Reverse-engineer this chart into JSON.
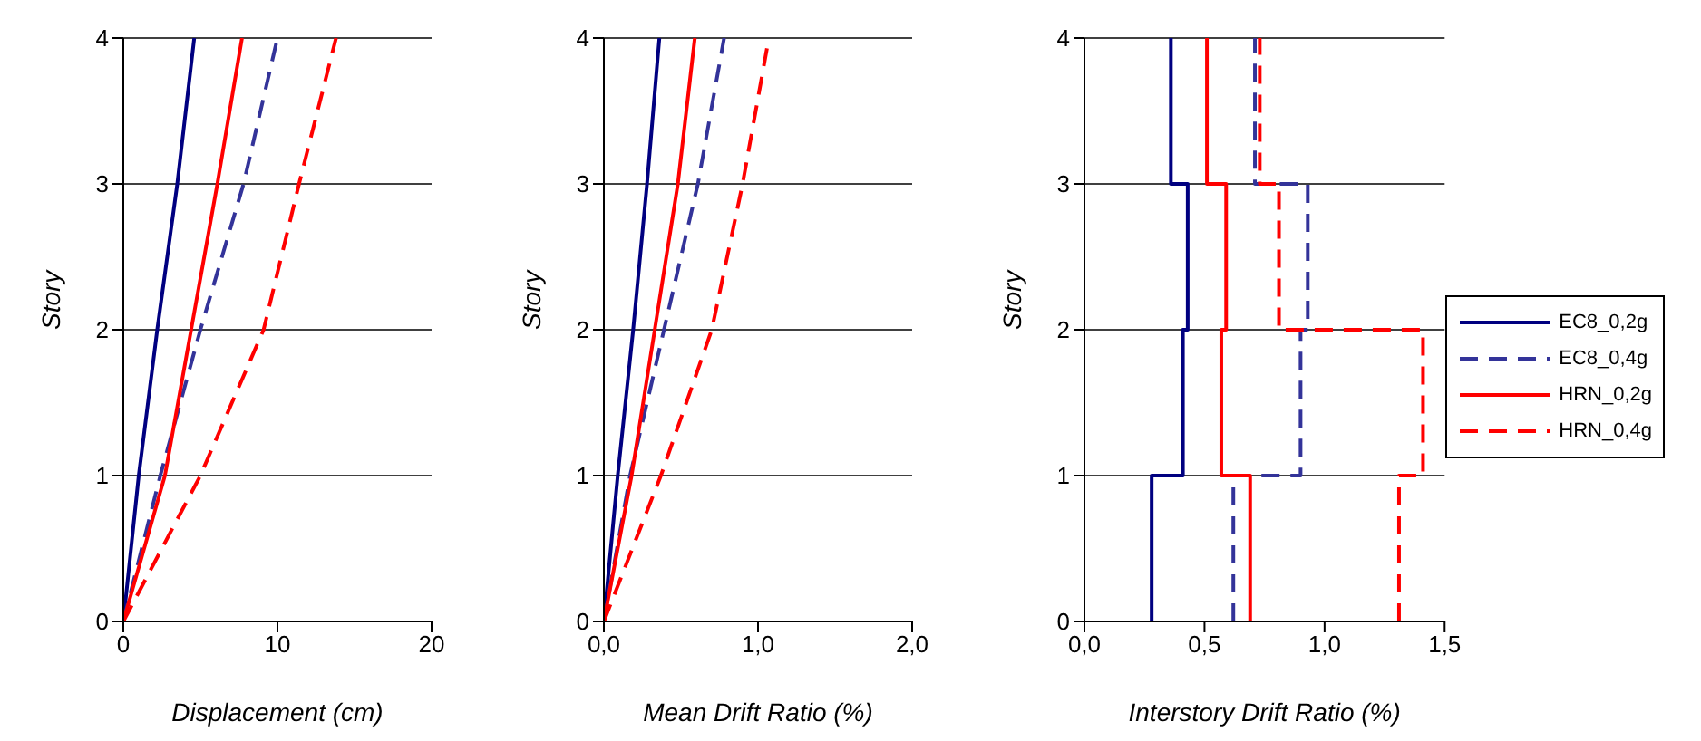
{
  "chart_data": [
    {
      "type": "line",
      "xlabel": "Displacement (cm)",
      "ylabel": "Story",
      "xlim": [
        0,
        20
      ],
      "xticks": [
        0,
        10,
        20
      ],
      "ylim": [
        0,
        4
      ],
      "yticks": [
        0,
        1,
        2,
        3,
        4
      ],
      "grid": "y",
      "marker": "none",
      "legend": false,
      "series": [
        {
          "color": "#000080",
          "line_style": "solid",
          "x": [
            0,
            1.0,
            2.2,
            3.5,
            4.6
          ],
          "values": [
            0,
            1,
            2,
            3,
            4
          ]
        },
        {
          "color": "#333399",
          "line_style": "dashed",
          "x": [
            0,
            2.4,
            5.0,
            7.8,
            10.0
          ],
          "values": [
            0,
            1,
            2,
            3,
            4
          ]
        },
        {
          "color": "#ff0000",
          "line_style": "solid",
          "x": [
            0,
            2.7,
            4.4,
            6.1,
            7.7
          ],
          "values": [
            0,
            1,
            2,
            3,
            4
          ]
        },
        {
          "color": "#ff0000",
          "line_style": "dashed",
          "x": [
            0,
            5.0,
            9.1,
            11.4,
            13.8
          ],
          "values": [
            0,
            1,
            2,
            3,
            4
          ]
        }
      ]
    },
    {
      "type": "line",
      "xlabel": "Mean Drift Ratio (%)",
      "ylabel": "Story",
      "xlim": [
        0,
        2
      ],
      "xticks": [
        {
          "value": 0,
          "label": "0,0"
        },
        {
          "value": 1,
          "label": "1,0"
        },
        {
          "value": 2,
          "label": "2,0"
        }
      ],
      "ylim": [
        0,
        4
      ],
      "yticks": [
        0,
        1,
        2,
        3,
        4
      ],
      "grid": "y",
      "marker": "none",
      "legend": false,
      "series": [
        {
          "color": "#000080",
          "line_style": "solid",
          "x": [
            0,
            0.09,
            0.19,
            0.28,
            0.36
          ],
          "values": [
            0,
            1,
            2,
            3,
            4
          ]
        },
        {
          "color": "#333399",
          "line_style": "dashed",
          "x": [
            0,
            0.17,
            0.39,
            0.61,
            0.78
          ],
          "values": [
            0,
            1,
            2,
            3,
            4
          ]
        },
        {
          "color": "#ff0000",
          "line_style": "solid",
          "x": [
            0,
            0.18,
            0.33,
            0.48,
            0.59
          ],
          "values": [
            0,
            1,
            2,
            3,
            4
          ]
        },
        {
          "color": "#ff0000",
          "line_style": "dashed",
          "x": [
            0,
            0.37,
            0.7,
            0.9,
            1.07
          ],
          "values": [
            0,
            1,
            2,
            3,
            4
          ]
        }
      ]
    },
    {
      "type": "line",
      "xlabel": "Interstory Drift Ratio (%)",
      "ylabel": "Story",
      "xlim": [
        0,
        1.5
      ],
      "xticks": [
        {
          "value": 0,
          "label": "0,0"
        },
        {
          "value": 0.5,
          "label": "0,5"
        },
        {
          "value": 1,
          "label": "1,0"
        },
        {
          "value": 1.5,
          "label": "1,5"
        }
      ],
      "ylim": [
        0,
        4
      ],
      "yticks": [
        0,
        1,
        2,
        3,
        4
      ],
      "grid": "y",
      "marker": "none",
      "legend": "right",
      "series": [
        {
          "name": "EC8_0,2g",
          "color": "#000080",
          "line_style": "solid",
          "x": [
            0.28,
            0.28,
            0.41,
            0.41,
            0.43,
            0.43,
            0.36,
            0.36
          ],
          "values": [
            0,
            1,
            1,
            2,
            2,
            3,
            3,
            4
          ]
        },
        {
          "name": "EC8_0,4g",
          "color": "#333399",
          "line_style": "dashed",
          "x": [
            0.62,
            0.62,
            0.9,
            0.9,
            0.93,
            0.93,
            0.71,
            0.71
          ],
          "values": [
            0,
            1,
            1,
            2,
            2,
            3,
            3,
            4
          ]
        },
        {
          "name": "HRN_0,2g",
          "color": "#ff0000",
          "line_style": "solid",
          "x": [
            0.69,
            0.69,
            0.57,
            0.57,
            0.59,
            0.59,
            0.51,
            0.51
          ],
          "values": [
            0,
            1,
            1,
            2,
            2,
            3,
            3,
            4
          ]
        },
        {
          "name": "HRN_0,4g",
          "color": "#ff0000",
          "line_style": "dashed",
          "x": [
            1.31,
            1.31,
            1.41,
            1.41,
            0.81,
            0.81,
            0.73,
            0.73
          ],
          "values": [
            0,
            1,
            1,
            2,
            2,
            3,
            3,
            4
          ]
        }
      ]
    }
  ]
}
